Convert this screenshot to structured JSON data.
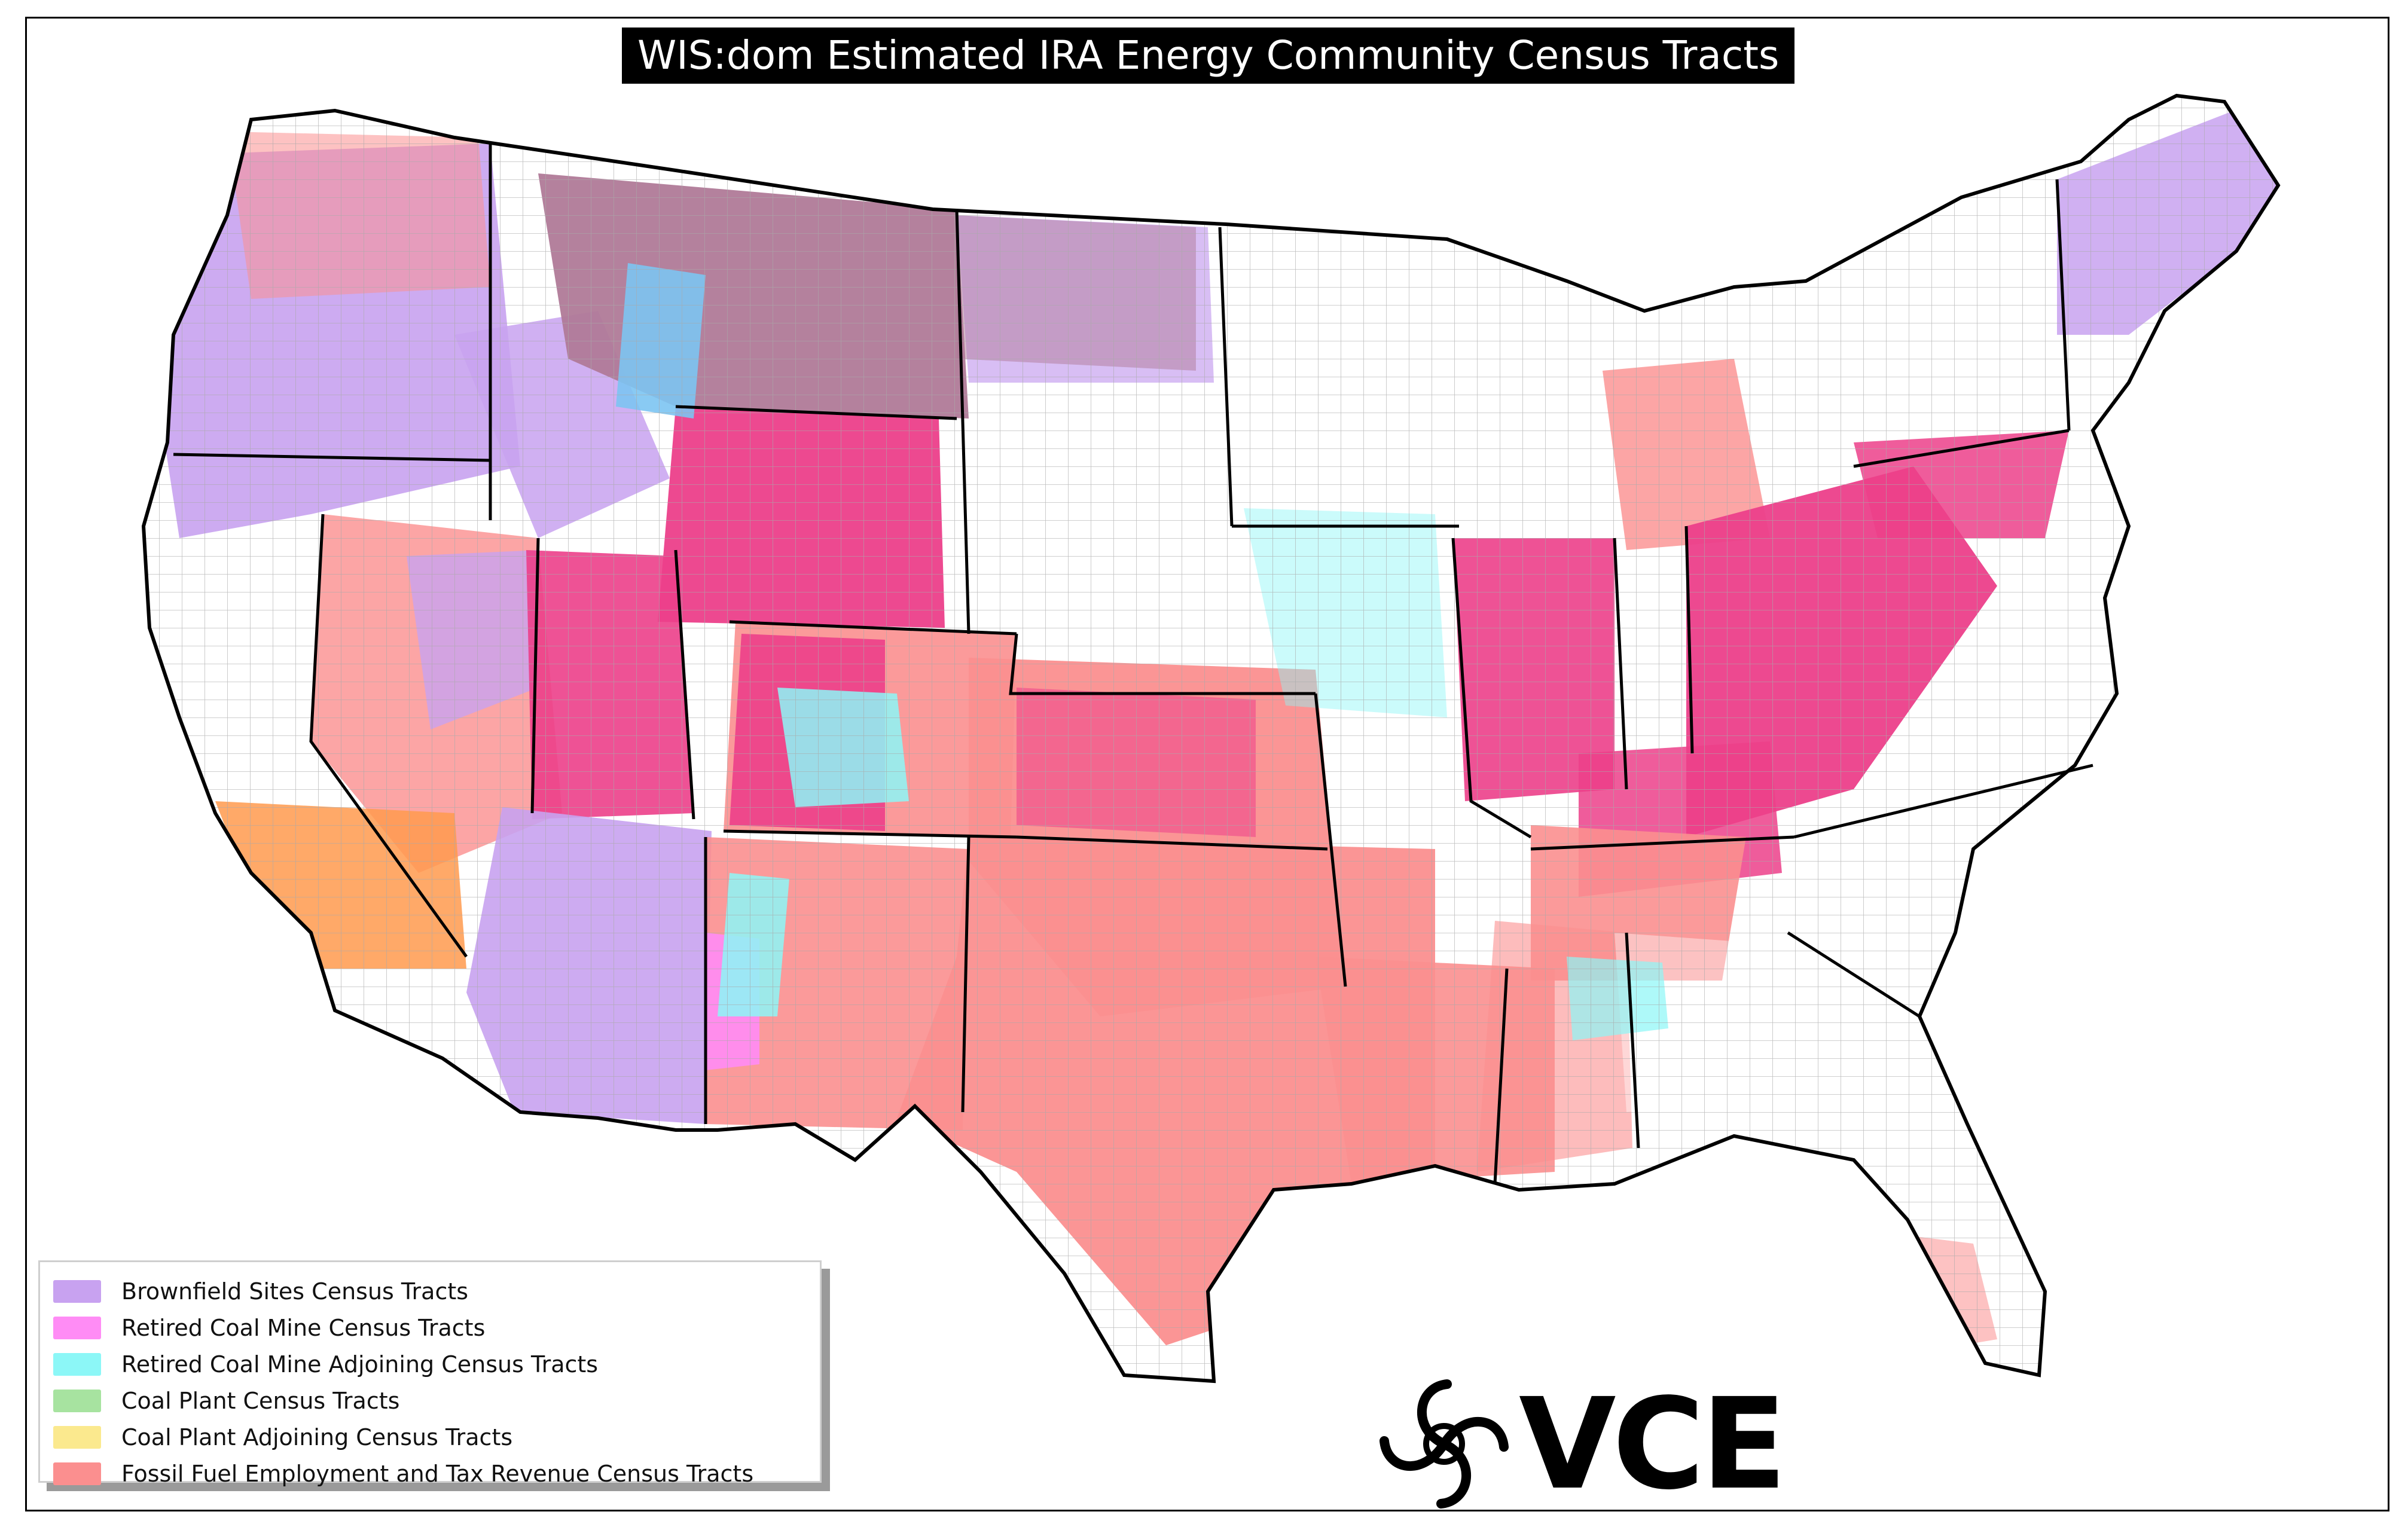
{
  "title": "WIS:dom Estimated IRA Energy Community Census Tracts",
  "legend": {
    "items": [
      {
        "label": "Brownfield Sites Census Tracts",
        "color": "#c8a2f0"
      },
      {
        "label": "Retired Coal Mine Census Tracts",
        "color": "#ff8cf5"
      },
      {
        "label": "Retired Coal Mine Adjoining Census Tracts",
        "color": "#8cf7f7"
      },
      {
        "label": "Coal Plant Census Tracts",
        "color": "#a7e3a0"
      },
      {
        "label": "Coal Plant Adjoining Census Tracts",
        "color": "#fbe98e"
      },
      {
        "label": "Fossil Fuel Employment and Tax Revenue Census Tracts",
        "color": "#fb8f8f"
      }
    ]
  },
  "logo": {
    "text": "VCE"
  },
  "overlap_colors": {
    "deep_pink": "#ec3f8a",
    "mauve": "#b07a98",
    "orange": "#ff9a4d",
    "sky": "#7cc4f2",
    "tan": "#d9b38c"
  }
}
